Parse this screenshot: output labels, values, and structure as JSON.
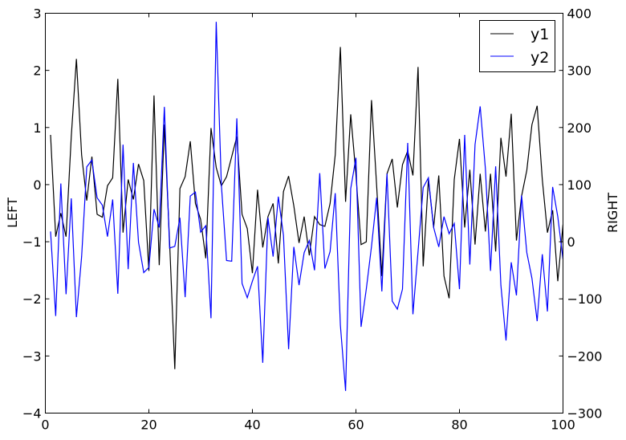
{
  "chart_data": {
    "type": "line",
    "title": "",
    "xlabel": "",
    "ylabel_left": "LEFT",
    "ylabel_right": "RIGHT",
    "xlim": [
      0,
      100
    ],
    "ylim_left": [
      -4,
      3
    ],
    "ylim_right": [
      -300,
      400
    ],
    "xticks": [
      0,
      20,
      40,
      60,
      80,
      100
    ],
    "yticks_left": [
      -4,
      -3,
      -2,
      -1,
      0,
      1,
      2,
      3
    ],
    "yticks_right": [
      -300,
      -200,
      -100,
      0,
      100,
      200,
      300,
      400
    ],
    "grid": false,
    "legend_position": "top-right",
    "x": [
      1,
      2,
      3,
      4,
      5,
      6,
      7,
      8,
      9,
      10,
      11,
      12,
      13,
      14,
      15,
      16,
      17,
      18,
      19,
      20,
      21,
      22,
      23,
      24,
      25,
      26,
      27,
      28,
      29,
      30,
      31,
      32,
      33,
      34,
      35,
      36,
      37,
      38,
      39,
      40,
      41,
      42,
      43,
      44,
      45,
      46,
      47,
      48,
      49,
      50,
      51,
      52,
      53,
      54,
      55,
      56,
      57,
      58,
      59,
      60,
      61,
      62,
      63,
      64,
      65,
      66,
      67,
      68,
      69,
      70,
      71,
      72,
      73,
      74,
      75,
      76,
      77,
      78,
      79,
      80,
      81,
      82,
      83,
      84,
      85,
      86,
      87,
      88,
      89,
      90,
      91,
      92,
      93,
      94,
      95,
      96,
      97,
      98,
      99,
      100
    ],
    "series": [
      {
        "name": "y1",
        "axis": "left",
        "color": "#000000",
        "values": [
          0.87,
          -0.91,
          -0.5,
          -0.91,
          0.84,
          2.2,
          0.52,
          -0.28,
          0.49,
          -0.52,
          -0.57,
          -0.02,
          0.12,
          1.85,
          -0.84,
          0.09,
          -0.26,
          0.36,
          0.07,
          -1.51,
          1.56,
          -1.41,
          1.05,
          -1.0,
          -3.23,
          -0.07,
          0.14,
          0.76,
          -0.33,
          -0.61,
          -1.29,
          0.99,
          0.3,
          -0.02,
          0.14,
          0.49,
          0.84,
          -0.52,
          -0.77,
          -1.55,
          -0.09,
          -1.1,
          -0.56,
          -0.33,
          -1.38,
          -0.12,
          0.15,
          -0.37,
          -1.02,
          -0.56,
          -1.24,
          -0.56,
          -0.7,
          -0.73,
          -0.33,
          0.52,
          2.41,
          -0.3,
          1.23,
          0.17,
          -1.05,
          -1.0,
          1.48,
          -0.02,
          -1.6,
          0.19,
          0.45,
          -0.4,
          0.35,
          0.59,
          0.16,
          2.06,
          -1.43,
          0.09,
          -0.75,
          0.16,
          -1.6,
          -1.99,
          0.09,
          0.8,
          -0.75,
          0.26,
          -1.05,
          0.19,
          -0.82,
          0.19,
          -1.17,
          0.82,
          0.14,
          1.24,
          -0.98,
          -0.2,
          0.25,
          1.05,
          1.38,
          0.09,
          -0.84,
          -0.45,
          -1.69,
          -0.7
        ]
      },
      {
        "name": "y2",
        "axis": "right",
        "color": "#0000ff",
        "values": [
          18,
          -130,
          102,
          -92,
          76,
          -132,
          -26,
          131,
          143,
          77,
          64,
          9,
          74,
          -91,
          170,
          -48,
          138,
          -1,
          -54,
          -45,
          57,
          25,
          236,
          -11,
          -8,
          42,
          -97,
          80,
          87,
          17,
          28,
          -134,
          385,
          100,
          -33,
          -34,
          216,
          -73,
          -98,
          -69,
          -43,
          -212,
          42,
          -26,
          79,
          11,
          -188,
          -9,
          -76,
          -19,
          2,
          -50,
          120,
          -47,
          -17,
          85,
          -146,
          -261,
          93,
          147,
          -149,
          -83,
          -8,
          77,
          -87,
          119,
          -104,
          -118,
          -83,
          173,
          -127,
          -17,
          95,
          112,
          25,
          -9,
          44,
          14,
          32,
          -83,
          187,
          -40,
          170,
          237,
          128,
          -51,
          132,
          -76,
          -173,
          -36,
          -94,
          81,
          -19,
          -64,
          -139,
          -22,
          -122,
          96,
          44,
          -31
        ]
      }
    ]
  }
}
